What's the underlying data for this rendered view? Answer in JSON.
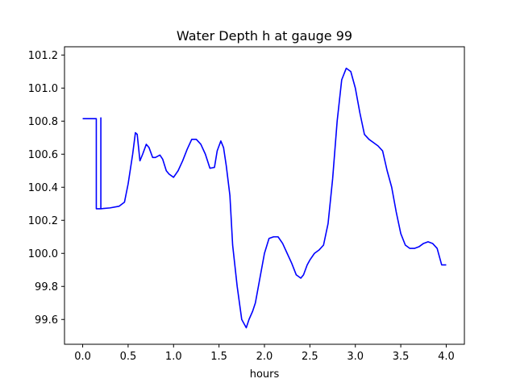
{
  "chart_data": {
    "type": "line",
    "title": "Water Depth h at gauge 99",
    "xlabel": "hours",
    "ylabel": "",
    "xlim": [
      -0.2,
      4.2
    ],
    "ylim": [
      99.45,
      101.25
    ],
    "xticks": [
      "0.0",
      "0.5",
      "1.0",
      "1.5",
      "2.0",
      "2.5",
      "3.0",
      "3.5",
      "4.0"
    ],
    "yticks": [
      "99.6",
      "99.8",
      "100.0",
      "100.2",
      "100.4",
      "100.6",
      "100.8",
      "101.0",
      "101.2"
    ],
    "grid": false,
    "series": [
      {
        "color": "#0000ff",
        "x": [
          0.0,
          0.15,
          0.15,
          0.2,
          0.2,
          0.2,
          0.2,
          0.3,
          0.4,
          0.46,
          0.5,
          0.55,
          0.58,
          0.6,
          0.63,
          0.66,
          0.7,
          0.73,
          0.77,
          0.8,
          0.85,
          0.88,
          0.92,
          0.95,
          1.0,
          1.05,
          1.1,
          1.15,
          1.2,
          1.25,
          1.3,
          1.35,
          1.4,
          1.45,
          1.48,
          1.52,
          1.55,
          1.58,
          1.62,
          1.65,
          1.7,
          1.75,
          1.8,
          1.83,
          1.87,
          1.9,
          1.95,
          2.0,
          2.05,
          2.1,
          2.15,
          2.2,
          2.25,
          2.3,
          2.35,
          2.4,
          2.43,
          2.47,
          2.5,
          2.55,
          2.6,
          2.65,
          2.7,
          2.75,
          2.8,
          2.85,
          2.9,
          2.95,
          3.0,
          3.05,
          3.1,
          3.15,
          3.2,
          3.25,
          3.3,
          3.35,
          3.4,
          3.45,
          3.5,
          3.55,
          3.6,
          3.65,
          3.7,
          3.75,
          3.8,
          3.85,
          3.9,
          3.95,
          4.0
        ],
        "y": [
          100.815,
          100.815,
          100.27,
          100.27,
          100.82,
          100.82,
          100.27,
          100.275,
          100.285,
          100.31,
          100.42,
          100.6,
          100.73,
          100.72,
          100.56,
          100.6,
          100.66,
          100.64,
          100.58,
          100.58,
          100.595,
          100.57,
          100.5,
          100.48,
          100.46,
          100.5,
          100.56,
          100.63,
          100.69,
          100.69,
          100.66,
          100.6,
          100.515,
          100.52,
          100.62,
          100.68,
          100.64,
          100.53,
          100.35,
          100.05,
          99.8,
          99.6,
          99.55,
          99.6,
          99.65,
          99.7,
          99.85,
          100.0,
          100.09,
          100.1,
          100.1,
          100.06,
          100.0,
          99.94,
          99.87,
          99.85,
          99.87,
          99.93,
          99.96,
          100.0,
          100.02,
          100.05,
          100.18,
          100.45,
          100.8,
          101.05,
          101.12,
          101.1,
          101.0,
          100.85,
          100.72,
          100.69,
          100.67,
          100.65,
          100.62,
          100.5,
          100.4,
          100.25,
          100.12,
          100.05,
          100.03,
          100.03,
          100.04,
          100.06,
          100.07,
          100.06,
          100.03,
          99.93,
          99.93
        ]
      }
    ]
  }
}
